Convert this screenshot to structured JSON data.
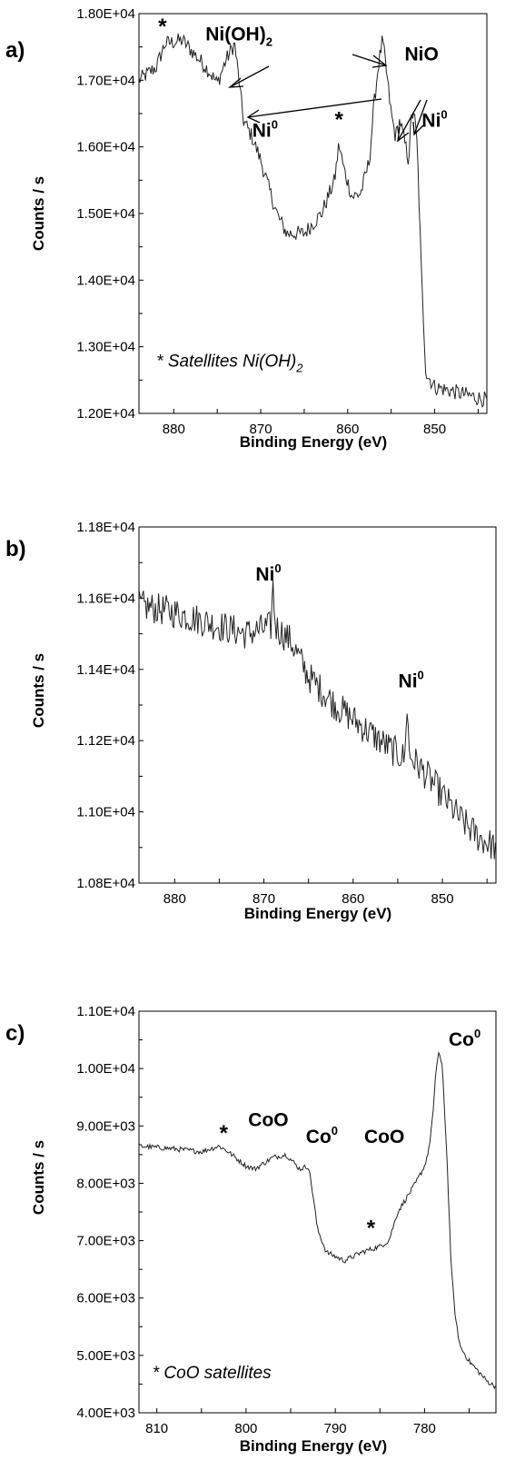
{
  "chart_data": [
    {
      "type": "line",
      "panel_label": "a)",
      "xlabel": "Binding Energy (eV)",
      "ylabel": "Counts / s",
      "xlim": [
        884,
        844
      ],
      "ylim": [
        12000,
        18000
      ],
      "x_ticks": [
        880,
        870,
        860,
        850
      ],
      "x_tick_labels": [
        "880",
        "870",
        "860",
        "850"
      ],
      "y_ticks": [
        12000,
        13000,
        14000,
        15000,
        16000,
        17000,
        18000
      ],
      "y_tick_labels": [
        "1.20E+04",
        "1.30E+04",
        "1.40E+04",
        "1.50E+04",
        "1.60E+04",
        "1.70E+04",
        "1.80E+04"
      ],
      "grid": false,
      "series": [
        {
          "noise": 120,
          "points": [
            [
              884,
              17000
            ],
            [
              882,
              17200
            ],
            [
              881,
              17550
            ],
            [
              879,
              17600
            ],
            [
              877,
              17300
            ],
            [
              876,
              17150
            ],
            [
              875,
              16950
            ],
            [
              874,
              17300
            ],
            [
              873,
              17550
            ],
            [
              872.5,
              17000
            ],
            [
              872,
              16400
            ],
            [
              871,
              16150
            ],
            [
              870,
              15800
            ],
            [
              869,
              15350
            ],
            [
              868,
              14950
            ],
            [
              867,
              14700
            ],
            [
              865,
              14700
            ],
            [
              863,
              15000
            ],
            [
              861.5,
              15500
            ],
            [
              861,
              16050
            ],
            [
              860.5,
              15700
            ],
            [
              859.5,
              15250
            ],
            [
              858.5,
              15300
            ],
            [
              857.5,
              15800
            ],
            [
              857,
              16600
            ],
            [
              856.5,
              17200
            ],
            [
              856,
              17600
            ],
            [
              855.7,
              17300
            ],
            [
              855,
              16500
            ],
            [
              854.5,
              16150
            ],
            [
              854,
              16400
            ],
            [
              853.5,
              16100
            ],
            [
              853,
              15800
            ],
            [
              852.7,
              16400
            ],
            [
              852.4,
              16550
            ],
            [
              852,
              16000
            ],
            [
              851.5,
              14000
            ],
            [
              851,
              12600
            ],
            [
              850,
              12400
            ],
            [
              847,
              12300
            ],
            [
              844,
              12200
            ]
          ]
        }
      ],
      "annotations": [
        {
          "text": "*",
          "x": 881.3,
          "y": 17700
        },
        {
          "text": "Ni(OH)",
          "sub": "2",
          "x": 872.5,
          "y": 17600
        },
        {
          "text": "NiO",
          "x": 851.5,
          "y": 17300
        },
        {
          "text": "Ni",
          "sup": "0",
          "x": 869.5,
          "y": 16150
        },
        {
          "text": "*",
          "x": 861,
          "y": 16300
        },
        {
          "text": "Ni",
          "sup": "0",
          "x": 850,
          "y": 16300
        }
      ],
      "note": {
        "text": "* Satellites Ni(OH)",
        "sub": "2",
        "x": 882,
        "y": 12700
      }
    },
    {
      "type": "line",
      "panel_label": "b)",
      "xlabel": "Binding Energy (eV)",
      "ylabel": "Counts / s",
      "xlim": [
        884,
        844
      ],
      "ylim": [
        10800,
        11800
      ],
      "x_ticks": [
        880,
        870,
        860,
        850
      ],
      "x_tick_labels": [
        "880",
        "870",
        "860",
        "850"
      ],
      "y_ticks": [
        10800,
        11000,
        11200,
        11400,
        11600,
        11800
      ],
      "y_tick_labels": [
        "1.08E+04",
        "1.10E+04",
        "1.12E+04",
        "1.14E+04",
        "1.16E+04",
        "1.18E+04"
      ],
      "grid": false,
      "series": [
        {
          "noise": 45,
          "points": [
            [
              884,
              11580
            ],
            [
              880,
              11560
            ],
            [
              876,
              11530
            ],
            [
              872,
              11500
            ],
            [
              869.2,
              11520
            ],
            [
              869,
              11640
            ],
            [
              868.7,
              11520
            ],
            [
              867,
              11480
            ],
            [
              865,
              11380
            ],
            [
              862,
              11300
            ],
            [
              859,
              11240
            ],
            [
              856,
              11180
            ],
            [
              854.2,
              11150
            ],
            [
              854,
              11320
            ],
            [
              853.7,
              11160
            ],
            [
              851,
              11080
            ],
            [
              848,
              10980
            ],
            [
              846,
              10930
            ],
            [
              844,
              10900
            ]
          ]
        }
      ],
      "annotations": [
        {
          "text": "Ni",
          "sup": "0",
          "x": 869.5,
          "y": 11650
        },
        {
          "text": "Ni",
          "sup": "0",
          "x": 853.5,
          "y": 11350
        }
      ]
    },
    {
      "type": "line",
      "panel_label": "c)",
      "xlabel": "Binding Energy (eV)",
      "ylabel": "Counts / s",
      "xlim": [
        812,
        772
      ],
      "ylim": [
        4000,
        11000
      ],
      "x_ticks": [
        810,
        800,
        790,
        780
      ],
      "x_tick_labels": [
        "810",
        "800",
        "790",
        "780"
      ],
      "y_ticks": [
        4000,
        5000,
        6000,
        7000,
        8000,
        9000,
        10000,
        11000
      ],
      "y_tick_labels": [
        "4.00E+03",
        "5.00E+03",
        "6.00E+03",
        "7.00E+03",
        "8.00E+03",
        "9.00E+03",
        "1.00E+04",
        "1.10E+04"
      ],
      "grid": false,
      "series": [
        {
          "noise": 45,
          "points": [
            [
              812,
              8650
            ],
            [
              808,
              8600
            ],
            [
              805,
              8550
            ],
            [
              803,
              8650
            ],
            [
              802,
              8550
            ],
            [
              800,
              8300
            ],
            [
              799,
              8250
            ],
            [
              797,
              8450
            ],
            [
              795.5,
              8500
            ],
            [
              794,
              8250
            ],
            [
              793,
              8300
            ],
            [
              792.5,
              7800
            ],
            [
              792,
              7200
            ],
            [
              791,
              6800
            ],
            [
              789,
              6650
            ],
            [
              787,
              6800
            ],
            [
              785,
              6900
            ],
            [
              784,
              7000
            ],
            [
              783,
              7500
            ],
            [
              781,
              8000
            ],
            [
              780,
              8300
            ],
            [
              779.5,
              8600
            ],
            [
              779,
              9300
            ],
            [
              778.7,
              10000
            ],
            [
              778.4,
              10300
            ],
            [
              778,
              10000
            ],
            [
              777.5,
              8500
            ],
            [
              777,
              6500
            ],
            [
              776.5,
              5600
            ],
            [
              776,
              5150
            ],
            [
              775,
              4900
            ],
            [
              773,
              4550
            ],
            [
              772,
              4450
            ]
          ]
        }
      ],
      "annotations": [
        {
          "text": "*",
          "x": 802.5,
          "y": 8750
        },
        {
          "text": "CoO",
          "x": 797.5,
          "y": 9000
        },
        {
          "text": "Co",
          "sup": "0",
          "x": 791.5,
          "y": 8700
        },
        {
          "text": "CoO",
          "x": 784.5,
          "y": 8700
        },
        {
          "text": "*",
          "x": 786,
          "y": 7100
        },
        {
          "text": "Co",
          "sup": "0",
          "x": 775.5,
          "y": 10400
        }
      ],
      "note": {
        "text": "* CoO satellites",
        "x": 810.5,
        "y": 4600
      }
    }
  ]
}
